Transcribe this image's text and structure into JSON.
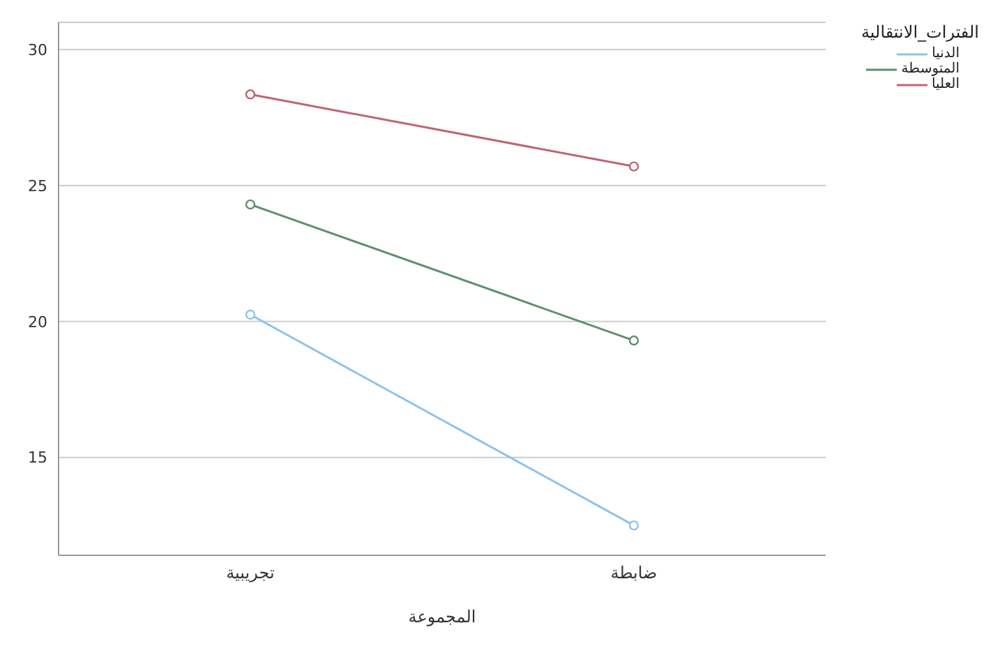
{
  "chart_data": {
    "type": "line",
    "xlabel": "المجموعة",
    "legend_title": "الفترات_الانتقالية",
    "categories": [
      "تجريبية",
      "ضابطة"
    ],
    "series": [
      {
        "name": "الدنيا",
        "color": "#8ec3ea",
        "values": [
          20.25,
          12.5
        ]
      },
      {
        "name": "المتوسطة",
        "color": "#5f8f6f",
        "values": [
          24.3,
          19.3
        ]
      },
      {
        "name": "العليا",
        "color": "#c06474",
        "values": [
          28.35,
          25.7
        ]
      }
    ],
    "ylim": [
      11.4,
      31
    ],
    "yticks": [
      15,
      20,
      25,
      30
    ],
    "grid": "y",
    "legend": "top right",
    "marker": "circle",
    "line_style": "solid"
  }
}
